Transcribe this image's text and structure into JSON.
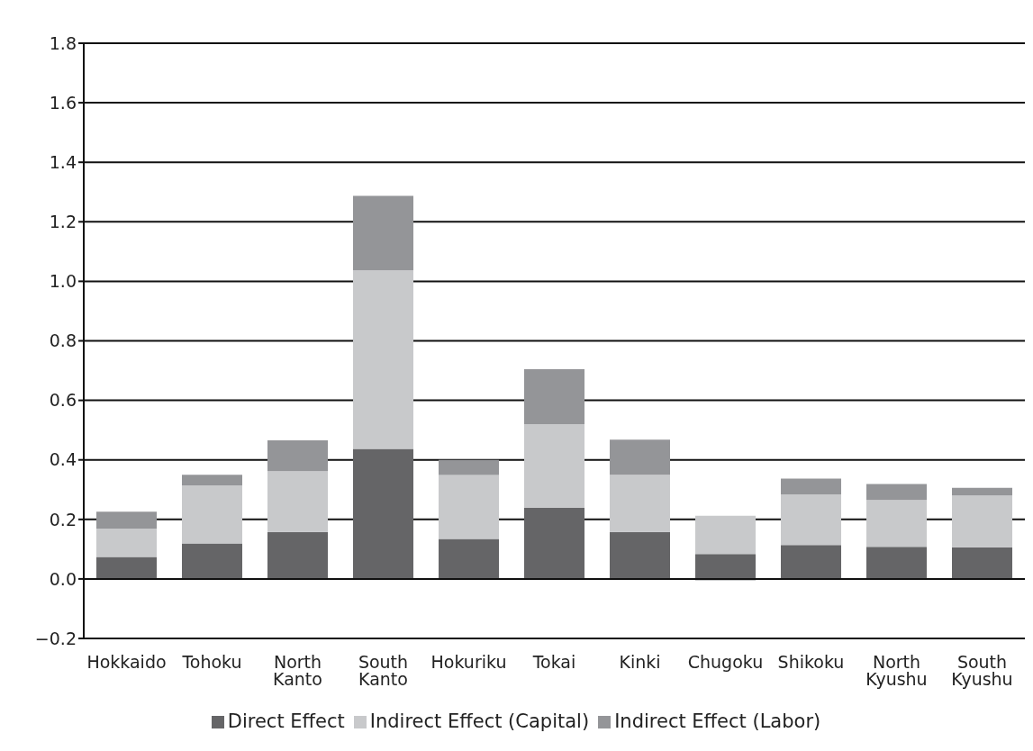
{
  "chart_data": {
    "type": "bar",
    "stacked": true,
    "categories": [
      "Hokkaido",
      "Tohoku",
      "North Kanto",
      "South Kanto",
      "Hokuriku",
      "Tokai",
      "Kinki",
      "Chugoku",
      "Shikoku",
      "North Kyushu",
      "South Kyushu"
    ],
    "series": [
      {
        "name": "Direct Effect",
        "color": "#656567",
        "values": [
          0.074,
          0.119,
          0.158,
          0.437,
          0.134,
          0.239,
          0.158,
          0.084,
          0.114,
          0.108,
          0.106
        ]
      },
      {
        "name": "Indirect Effect (Capital)",
        "color": "#c8c9cb",
        "values": [
          0.095,
          0.195,
          0.204,
          0.6,
          0.215,
          0.281,
          0.192,
          0.128,
          0.17,
          0.157,
          0.174
        ]
      },
      {
        "name": "Indirect Effect (Labor)",
        "color": "#949598",
        "values": [
          0.057,
          0.036,
          0.104,
          0.25,
          0.051,
          0.185,
          0.118,
          -0.005,
          0.053,
          0.054,
          0.026
        ]
      }
    ],
    "ylim": [
      -0.2,
      1.8
    ],
    "yticks": [
      {
        "value": -0.2,
        "label": "−0.2"
      },
      {
        "value": 0,
        "label": "0.0"
      },
      {
        "value": 0.2,
        "label": "0.2"
      },
      {
        "value": 0.4,
        "label": "0.4"
      },
      {
        "value": 0.6,
        "label": "0.6"
      },
      {
        "value": 0.8,
        "label": "0.8"
      },
      {
        "value": 1,
        "label": "1.0"
      },
      {
        "value": 1.2,
        "label": "1.2"
      },
      {
        "value": 1.4,
        "label": "1.4"
      },
      {
        "value": 1.6,
        "label": "1.6"
      },
      {
        "value": 1.8,
        "label": "1.8"
      }
    ],
    "grid": "y",
    "legend": "bottom"
  }
}
